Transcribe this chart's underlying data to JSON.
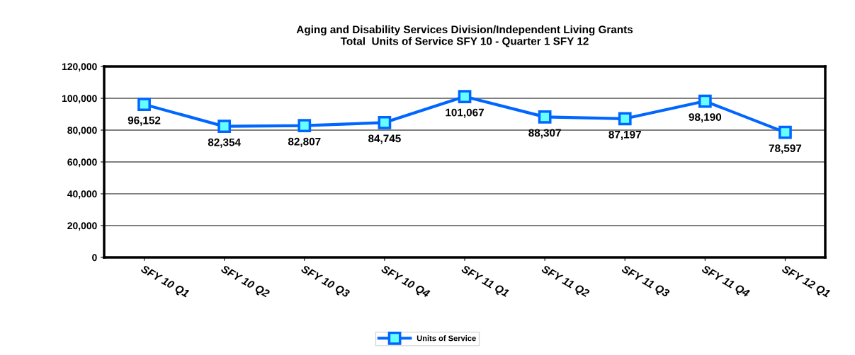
{
  "chart_data": {
    "type": "line",
    "title": "Aging and Disability Services Division/Independent Living Grants\nTotal  Units of Service SFY 10 - Quarter 1 SFY 12",
    "categories": [
      "SFY 10 Q1",
      "SFY 10 Q2",
      "SFY 10 Q3",
      "SFY 10 Q4",
      "SFY 11 Q1",
      "SFY 11 Q2",
      "SFY 11 Q3",
      "SFY 11 Q4",
      "SFY 12 Q1"
    ],
    "series": [
      {
        "name": "Units of Service",
        "color": "#0066ff",
        "values": [
          96152,
          82354,
          82807,
          84745,
          101067,
          88307,
          87197,
          98190,
          78597
        ]
      }
    ],
    "value_labels": [
      "96,152",
      "82,354",
      "82,807",
      "84,745",
      "101,067",
      "88,307",
      "87,197",
      "98,190",
      "78,597"
    ],
    "ylim": [
      0,
      120000
    ],
    "yticks": [
      {
        "value": 0,
        "label": "0"
      },
      {
        "value": 20000,
        "label": "20,000"
      },
      {
        "value": 40000,
        "label": "40,000"
      },
      {
        "value": 60000,
        "label": "60,000"
      },
      {
        "value": 80000,
        "label": "80,000"
      },
      {
        "value": 100000,
        "label": "100,000"
      },
      {
        "value": 120000,
        "label": "120,000"
      }
    ],
    "grid": "y",
    "legend": "bottom",
    "marker": "square",
    "line_style": "solid"
  }
}
